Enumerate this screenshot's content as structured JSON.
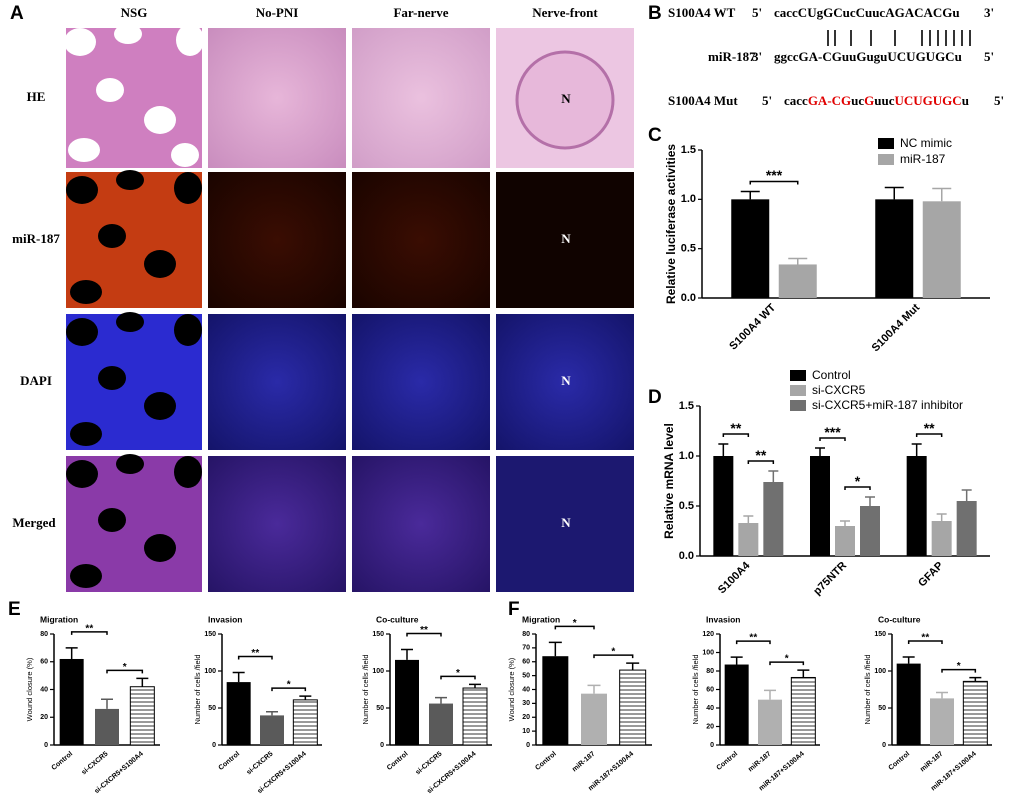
{
  "panel_letters": [
    "A",
    "B",
    "C",
    "D",
    "E",
    "F"
  ],
  "panel_a": {
    "columns": [
      "NSG",
      "No-PNI",
      "Far-nerve",
      "Nerve-front"
    ],
    "rows": [
      "HE",
      "miR-187",
      "DAPI",
      "Merged"
    ],
    "marker": "N"
  },
  "panel_b": {
    "rows": [
      {
        "name": "S100A4 WT",
        "left": "5'",
        "sequence": "caccCUgGCucCuucAGACACGu",
        "right": "3'"
      },
      {
        "name": "miR-187",
        "left": "3'",
        "sequence": "ggccGA-CGuuGuguUCUGUGCu",
        "right": "5'"
      },
      {
        "name": "S100A4 Mut",
        "left": "5'",
        "segments": [
          {
            "text": "cacc",
            "color": "#000000"
          },
          {
            "text": "GA-CG",
            "color": "#e00000"
          },
          {
            "text": "uc",
            "color": "#000000"
          },
          {
            "text": "G",
            "color": "#e00000"
          },
          {
            "text": "uuc",
            "color": "#000000"
          },
          {
            "text": "UCUGUGC",
            "color": "#e00000"
          },
          {
            "text": "u",
            "color": "#000000"
          }
        ],
        "right": "5'"
      }
    ]
  },
  "chart_data": [
    {
      "type": "bar",
      "ylabel": "Relative luciferase activities",
      "categories": [
        "S100A4 WT",
        "S100A4 Mut"
      ],
      "series": [
        {
          "name": "NC mimic",
          "color": "#000000",
          "values": [
            1.0,
            1.0
          ],
          "errors": [
            0.08,
            0.12
          ]
        },
        {
          "name": "miR-187",
          "color": "#a6a6a6",
          "values": [
            0.34,
            0.98
          ],
          "errors": [
            0.06,
            0.13
          ]
        }
      ],
      "significance": [
        [
          "***"
        ],
        [
          null
        ]
      ],
      "ylim": [
        0,
        1.5
      ],
      "yticks": [
        {
          "value": 0,
          "label": "0.0"
        },
        {
          "value": 0.5,
          "label": "0.5"
        },
        {
          "value": 1,
          "label": "1.0"
        },
        {
          "value": 1.5,
          "label": "1.5"
        }
      ],
      "legend": "top-right"
    },
    {
      "type": "bar",
      "ylabel": "Relative mRNA level",
      "categories": [
        "S100A4",
        "p75NTR",
        "GFAP"
      ],
      "series": [
        {
          "name": "Control",
          "color": "#000000",
          "values": [
            1.0,
            1.0,
            1.0
          ],
          "errors": [
            0.12,
            0.08,
            0.12
          ]
        },
        {
          "name": "si-CXCR5",
          "color": "#a6a6a6",
          "values": [
            0.33,
            0.3,
            0.35
          ],
          "errors": [
            0.07,
            0.05,
            0.07
          ]
        },
        {
          "name": "si-CXCR5+miR-187 inhibitor",
          "color": "#707070",
          "values": [
            0.74,
            0.5,
            0.55
          ],
          "errors": [
            0.11,
            0.09,
            0.11
          ]
        }
      ],
      "significance": [
        [
          "**",
          "**"
        ],
        [
          "***",
          "*"
        ],
        [
          "**",
          null
        ]
      ],
      "ylim": [
        0,
        1.5
      ],
      "yticks": [
        {
          "value": 0,
          "label": "0.0"
        },
        {
          "value": 0.5,
          "label": "0.5"
        },
        {
          "value": 1,
          "label": "1.0"
        },
        {
          "value": 1.5,
          "label": "1.5"
        }
      ],
      "legend": "top"
    },
    {
      "type": "bar",
      "title": "Migration",
      "ylabel": "Wound closure (%)",
      "categories": [
        "Control",
        "si-CXCR5",
        "si-CXCR5+S100A4"
      ],
      "values": [
        62,
        26,
        42
      ],
      "errors": [
        8,
        7,
        6
      ],
      "colors": [
        "#000000",
        "#5a5a5a",
        "hatch"
      ],
      "significance": [
        "**",
        "*"
      ],
      "ylim": [
        0,
        80
      ],
      "yticks": [
        0,
        20,
        40,
        60,
        80
      ]
    },
    {
      "type": "bar",
      "title": "Invasion",
      "ylabel": "Number of cells /field",
      "categories": [
        "Control",
        "si-CXCR5",
        "si-CXCR5+S100A4"
      ],
      "values": [
        85,
        40,
        61
      ],
      "errors": [
        13,
        5,
        5
      ],
      "colors": [
        "#000000",
        "#5a5a5a",
        "hatch"
      ],
      "significance": [
        "**",
        "*"
      ],
      "ylim": [
        0,
        150
      ],
      "yticks": [
        0,
        50,
        100,
        150
      ]
    },
    {
      "type": "bar",
      "title": "Co-culture",
      "ylabel": "Number of cells /field",
      "categories": [
        "Control",
        "si-CXCR5",
        "si-CXCR5+S100A4"
      ],
      "values": [
        115,
        56,
        77
      ],
      "errors": [
        14,
        8,
        5
      ],
      "colors": [
        "#000000",
        "#5a5a5a",
        "hatch"
      ],
      "significance": [
        "**",
        "*"
      ],
      "ylim": [
        0,
        150
      ],
      "yticks": [
        0,
        50,
        100,
        150
      ]
    },
    {
      "type": "bar",
      "title": "Migration",
      "ylabel": "Wound closure (%)",
      "categories": [
        "Control",
        "miR-187",
        "miR-187+S100A4"
      ],
      "values": [
        64,
        37,
        54
      ],
      "errors": [
        10,
        6,
        5
      ],
      "colors": [
        "#000000",
        "#b0b0b0",
        "hatch"
      ],
      "significance": [
        "*",
        "*"
      ],
      "ylim": [
        0,
        80
      ],
      "yticks": [
        0,
        10,
        20,
        30,
        40,
        50,
        60,
        70,
        80
      ]
    },
    {
      "type": "bar",
      "title": "Invasion",
      "ylabel": "Number of cells /field",
      "categories": [
        "Control",
        "miR-187",
        "miR-187+S100A4"
      ],
      "values": [
        87,
        49,
        73
      ],
      "errors": [
        8,
        10,
        8
      ],
      "colors": [
        "#000000",
        "#b0b0b0",
        "hatch"
      ],
      "significance": [
        "**",
        "*"
      ],
      "ylim": [
        0,
        120
      ],
      "yticks": [
        0,
        20,
        40,
        60,
        80,
        100,
        120
      ]
    },
    {
      "type": "bar",
      "title": "Co-culture",
      "ylabel": "Number of cells /field",
      "categories": [
        "Control",
        "miR-187",
        "miR-187+S100A4"
      ],
      "values": [
        110,
        63,
        86
      ],
      "errors": [
        9,
        8,
        5
      ],
      "colors": [
        "#000000",
        "#b0b0b0",
        "hatch"
      ],
      "significance": [
        "**",
        "*"
      ],
      "ylim": [
        0,
        150
      ],
      "yticks": [
        0,
        50,
        100,
        150
      ]
    }
  ]
}
